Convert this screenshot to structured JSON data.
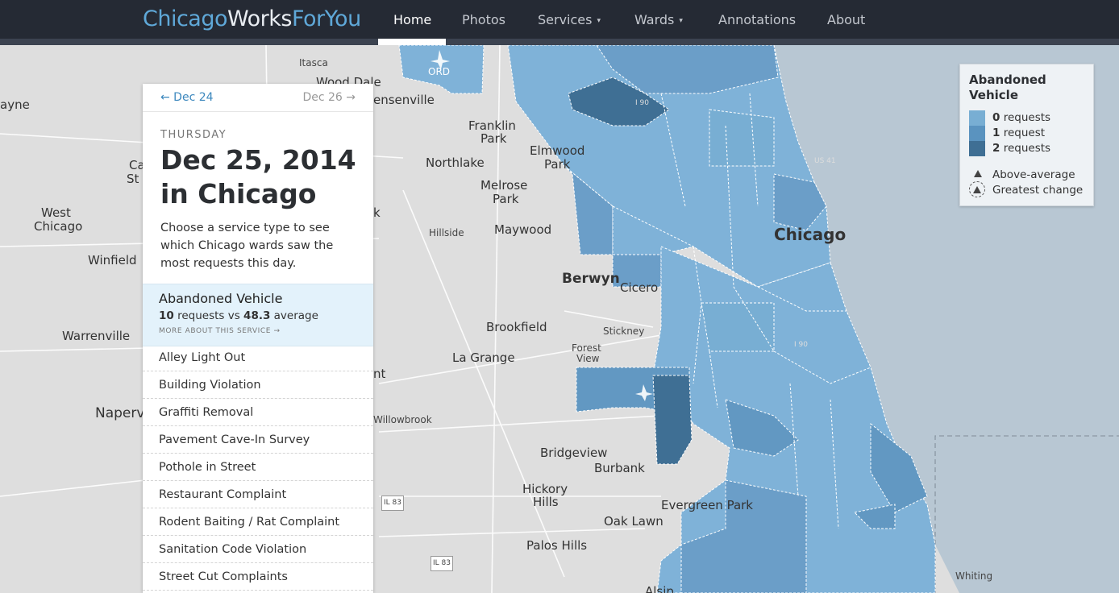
{
  "brand": {
    "part1": "Chicago",
    "part2": "Works",
    "part3": "ForYou",
    "color1": "#5fa8d8",
    "color2": "#e9edf2",
    "color3": "#5fa8d8"
  },
  "nav": {
    "items": [
      {
        "label": "Home",
        "active": true
      },
      {
        "label": "Photos"
      },
      {
        "label": "Services",
        "dropdown": true,
        "caret": "▾"
      },
      {
        "label": "Wards",
        "dropdown": true,
        "caret": "▾"
      },
      {
        "label": "Annotations"
      },
      {
        "label": "About"
      }
    ]
  },
  "panel": {
    "prev": "← Dec 24",
    "next": "Dec 26 →",
    "weekday": "THURSDAY",
    "date_line1": "Dec 25, 2014",
    "date_line2": "in Chicago",
    "intro": "Choose a service type to see which Chicago wards saw the most requests this day.",
    "selected": {
      "name": "Abandoned Vehicle",
      "count": "10",
      "mid": " requests vs ",
      "average": "48.3",
      "suffix": " average",
      "more": "MORE ABOUT THIS SERVICE →"
    },
    "services": [
      "Alley Light Out",
      "Building Violation",
      "Graffiti Removal",
      "Pavement Cave-In Survey",
      "Pothole in Street",
      "Restaurant Complaint",
      "Rodent Baiting / Rat Complaint",
      "Sanitation Code Violation",
      "Street Cut Complaints"
    ]
  },
  "legend": {
    "title_line1": "Abandoned",
    "title_line2": "Vehicle",
    "rows": [
      {
        "num": "0",
        "label": " requests",
        "color": "#78aed3"
      },
      {
        "num": "1",
        "label": " request",
        "color": "#5a93bf"
      },
      {
        "num": "2",
        "label": " requests",
        "color": "#3f6f94"
      }
    ],
    "above_average": "Above-average",
    "greatest_change": "Greatest change"
  },
  "map": {
    "colors": {
      "land": "#dedede",
      "water": "#b8c7d3",
      "ward_light": "#7fb2d8",
      "ward_mid": "#6298c2",
      "ward_dark": "#3f6f94"
    },
    "labels": [
      "Itasca",
      "Wood Dale",
      "ensenville",
      "ORD",
      "ayne",
      "Franklin",
      "Park",
      "Elmwood",
      "Park",
      "Northlake",
      "Melrose",
      "Park",
      "Ca",
      "St",
      "West",
      "Chicago",
      "Hillside",
      "Maywood",
      "Winfield",
      "Berwyn",
      "Cicero",
      "Chicago",
      "Warrenville",
      "Brookfield",
      "Stickney",
      "Forest",
      "View",
      "La Grange",
      "Naperv",
      "Willowbrook",
      "Bridgeview",
      "Burbank",
      "Hickory",
      "Hills",
      "Evergreen Park",
      "Oak Lawn",
      "Palos Hills",
      "Whiting",
      "Alsip",
      "IL 83",
      "IL 83",
      "I 90",
      "I 90",
      "US 41",
      "k",
      "nt"
    ]
  }
}
